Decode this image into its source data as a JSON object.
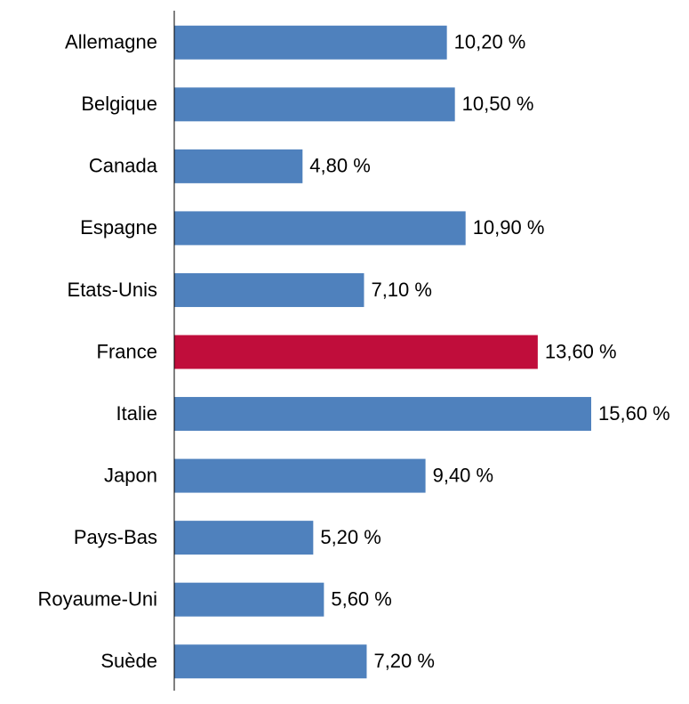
{
  "chart_data": {
    "type": "bar",
    "orientation": "horizontal",
    "categories": [
      "Allemagne",
      "Belgique",
      "Canada",
      "Espagne",
      "Etats-Unis",
      "France",
      "Italie",
      "Japon",
      "Pays-Bas",
      "Royaume-Uni",
      "Suède"
    ],
    "values": [
      10.2,
      10.5,
      4.8,
      10.9,
      7.1,
      13.6,
      15.6,
      9.4,
      5.2,
      5.6,
      7.2
    ],
    "value_labels": [
      "10,20 %",
      "10,50 %",
      "4,80 %",
      "10,90 %",
      "7,10 %",
      "13,60 %",
      "15,60 %",
      "9,40 %",
      "5,20 %",
      "5,60 %",
      "7,20 %"
    ],
    "colors": [
      "#4f81bd",
      "#4f81bd",
      "#4f81bd",
      "#4f81bd",
      "#4f81bd",
      "#c00d3b",
      "#4f81bd",
      "#4f81bd",
      "#4f81bd",
      "#4f81bd",
      "#4f81bd"
    ]
  }
}
